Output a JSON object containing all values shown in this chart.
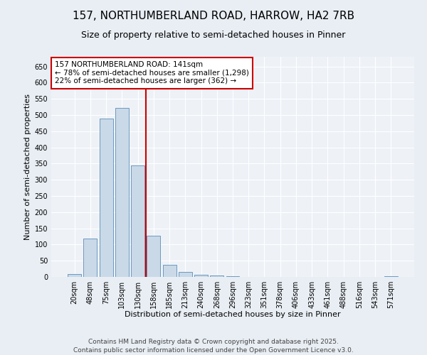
{
  "title_line1": "157, NORTHUMBERLAND ROAD, HARROW, HA2 7RB",
  "title_line2": "Size of property relative to semi-detached houses in Pinner",
  "xlabel": "Distribution of semi-detached houses by size in Pinner",
  "ylabel": "Number of semi-detached properties",
  "categories": [
    "20sqm",
    "48sqm",
    "75sqm",
    "103sqm",
    "130sqm",
    "158sqm",
    "185sqm",
    "213sqm",
    "240sqm",
    "268sqm",
    "296sqm",
    "323sqm",
    "351sqm",
    "378sqm",
    "406sqm",
    "433sqm",
    "461sqm",
    "488sqm",
    "516sqm",
    "543sqm",
    "571sqm"
  ],
  "values": [
    8,
    118,
    490,
    522,
    345,
    128,
    38,
    15,
    7,
    4,
    2,
    1,
    1,
    0,
    0,
    0,
    0,
    0,
    0,
    0,
    3
  ],
  "bar_color": "#c9d9e8",
  "bar_edge_color": "#5b8db8",
  "redline_index": 4,
  "annotation_title": "157 NORTHUMBERLAND ROAD: 141sqm",
  "annotation_line1": "← 78% of semi-detached houses are smaller (1,298)",
  "annotation_line2": "22% of semi-detached houses are larger (362) →",
  "redline_color": "#cc0000",
  "annotation_box_color": "#cc0000",
  "ylim": [
    0,
    680
  ],
  "yticks": [
    0,
    50,
    100,
    150,
    200,
    250,
    300,
    350,
    400,
    450,
    500,
    550,
    600,
    650
  ],
  "footnote_line1": "Contains HM Land Registry data © Crown copyright and database right 2025.",
  "footnote_line2": "Contains public sector information licensed under the Open Government Licence v3.0.",
  "background_color": "#e8eef4",
  "plot_background_color": "#eef2f7",
  "title_fontsize": 11,
  "subtitle_fontsize": 9,
  "label_fontsize": 8,
  "tick_fontsize": 7,
  "footnote_fontsize": 6.5,
  "annotation_fontsize": 7.5
}
